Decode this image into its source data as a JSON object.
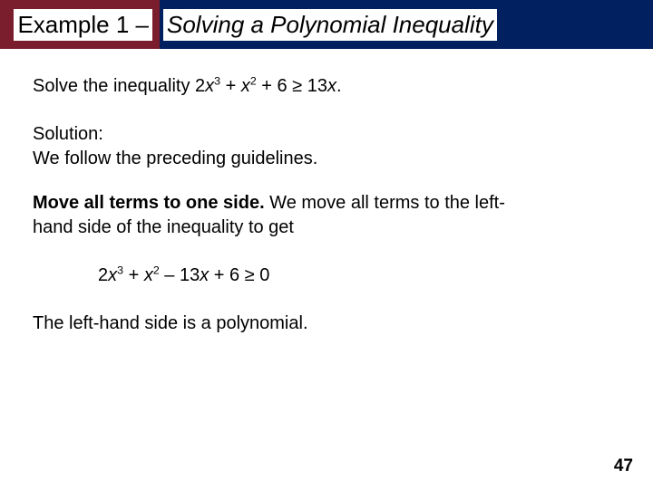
{
  "header": {
    "left_text": "Example 1 –",
    "right_text": "Solving a Polynomial Inequality",
    "colors": {
      "red_bg": "#7a1e2e",
      "blue_bg": "#002060",
      "text_bg": "#ffffff",
      "text_color": "#000000"
    },
    "fontsize": 26
  },
  "body": {
    "fontsize": 20,
    "text_color": "#000000",
    "line1_prefix": "Solve the inequality ",
    "ineq1": {
      "coef1": "2",
      "var": "x",
      "exp1": "3",
      "plus1": " + ",
      "exp2": "2",
      "plus2": " + 6 ",
      "rel": "≥",
      "rhs": " 13",
      "end": "."
    },
    "solution_label": "Solution:",
    "solution_line": "We follow the preceding guidelines.",
    "step_bold": "Move all terms to one side.",
    "step_rest_a": " We move all terms to the left-",
    "step_rest_b": "hand side of the inequality to get",
    "ineq2": {
      "coef1": "2",
      "var": "x",
      "exp1": "3",
      "plus1": " + ",
      "exp2": "2",
      "mid": " – 13",
      "plus2": " + 6 ",
      "rel": "≥",
      "rhs": " 0"
    },
    "closing": "The left-hand side is a polynomial."
  },
  "page_number": "47"
}
